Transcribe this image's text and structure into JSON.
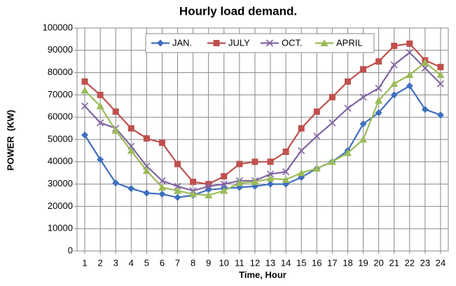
{
  "chart_data": {
    "type": "line",
    "title": "Hourly load demand.",
    "xlabel": "Time, Hour",
    "ylabel": "POWER  (KW)",
    "x": [
      1,
      2,
      3,
      4,
      5,
      6,
      7,
      8,
      9,
      10,
      11,
      12,
      13,
      14,
      15,
      16,
      17,
      18,
      19,
      20,
      21,
      22,
      23,
      24
    ],
    "xlim": [
      0.5,
      24.5
    ],
    "xticks": [
      1,
      2,
      3,
      4,
      5,
      6,
      7,
      8,
      9,
      10,
      11,
      12,
      13,
      14,
      15,
      16,
      17,
      18,
      19,
      20,
      21,
      22,
      23,
      24
    ],
    "ylim": [
      0,
      100000
    ],
    "yticks": [
      0,
      10000,
      20000,
      30000,
      40000,
      50000,
      60000,
      70000,
      80000,
      90000,
      100000
    ],
    "grid": true,
    "legend": "top",
    "series": [
      {
        "name": "JAN.",
        "color": "#3f6fc0",
        "marker": "diamond",
        "values": [
          52000,
          41000,
          30500,
          28000,
          26000,
          25500,
          24000,
          25000,
          27500,
          28000,
          28500,
          29000,
          30000,
          30000,
          33000,
          37000,
          40000,
          45000,
          57000,
          62000,
          70000,
          74000,
          63500,
          61000
        ]
      },
      {
        "name": "JULY",
        "color": "#c0504d",
        "marker": "square",
        "values": [
          76000,
          70000,
          62500,
          55000,
          50500,
          48500,
          39000,
          31000,
          30000,
          33500,
          39000,
          40000,
          40000,
          44500,
          55000,
          62500,
          69000,
          76000,
          81500,
          85000,
          92000,
          93000,
          85500,
          82500
        ]
      },
      {
        "name": "OCT.",
        "color": "#8064a2",
        "marker": "x",
        "values": [
          65000,
          57500,
          55000,
          47000,
          38000,
          31500,
          29000,
          27000,
          29000,
          30000,
          31500,
          31500,
          34500,
          35500,
          45000,
          51500,
          57500,
          64000,
          69000,
          73000,
          83500,
          89000,
          82000,
          75000
        ]
      },
      {
        "name": "APRIL",
        "color": "#9bbb59",
        "marker": "triangle",
        "values": [
          72000,
          65000,
          54000,
          45000,
          36000,
          28500,
          27000,
          25500,
          25000,
          27000,
          30500,
          31000,
          32500,
          32000,
          35000,
          37000,
          40000,
          44000,
          50000,
          67500,
          75000,
          79000,
          84500,
          79000
        ]
      }
    ]
  }
}
